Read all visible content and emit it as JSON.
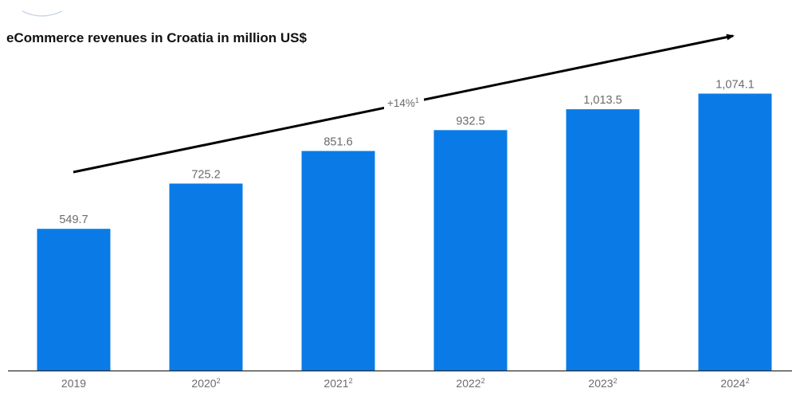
{
  "chart_data": {
    "type": "bar",
    "title": "eCommerce revenues in Croatia in million US$",
    "categories": [
      "2019",
      "2020",
      "2021",
      "2022",
      "2023",
      "2024"
    ],
    "category_superscripts": [
      "",
      "2",
      "2",
      "2",
      "2",
      "2"
    ],
    "values": [
      549.7,
      725.2,
      851.6,
      932.5,
      1013.5,
      1074.1
    ],
    "value_labels": [
      "549.7",
      "725.2",
      "851.6",
      "932.5",
      "1,013.5",
      "1,074.1"
    ],
    "ylim": [
      0,
      1200
    ],
    "grid": false,
    "legend": "none",
    "bar_color": "#0a7be6",
    "annotation": {
      "type": "trend-arrow",
      "label": "+14%",
      "label_superscript": "1",
      "direction": "up"
    }
  }
}
